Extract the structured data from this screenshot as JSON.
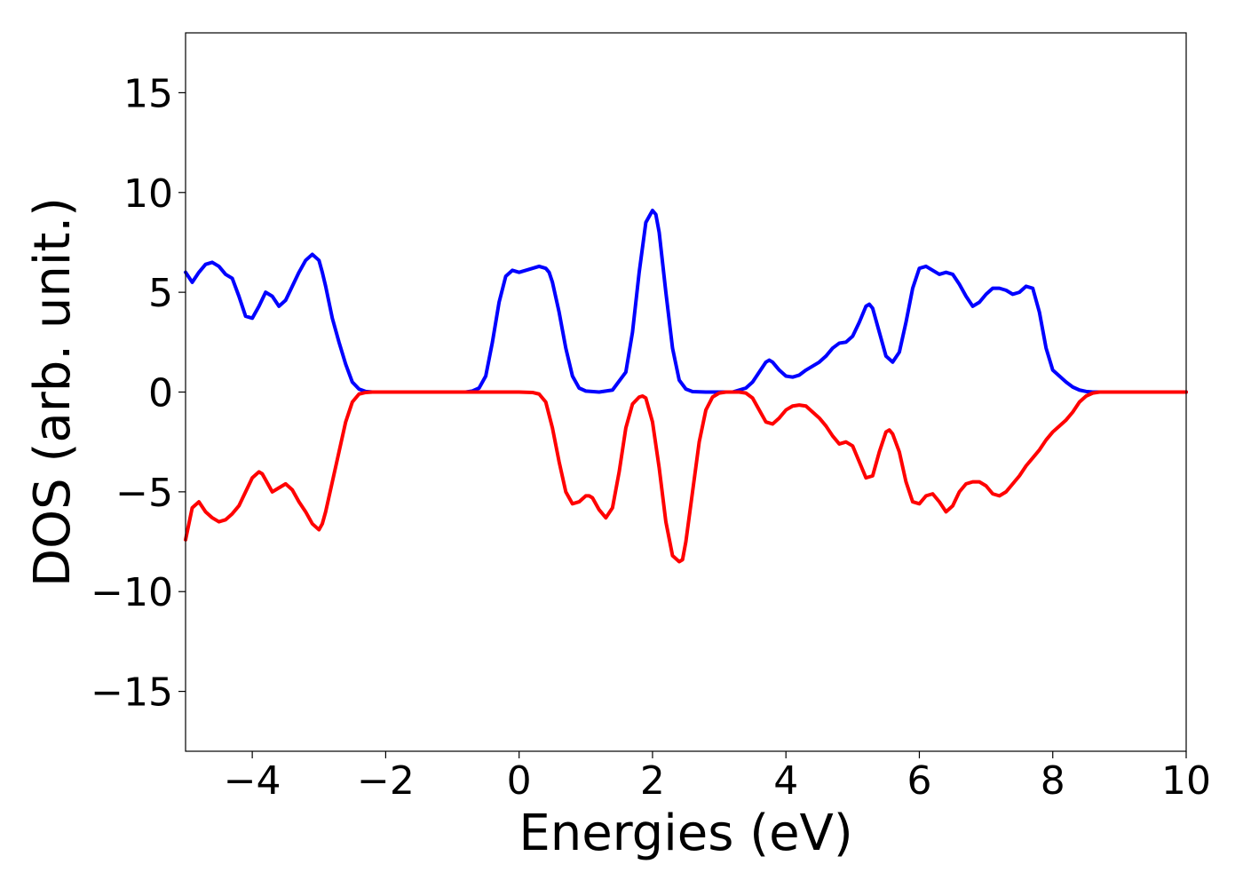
{
  "chart_data": {
    "type": "line",
    "title": "",
    "xlabel": "Energies (eV)",
    "ylabel": "DOS (arb. unit.)",
    "xlim": [
      -5,
      10
    ],
    "ylim": [
      -18,
      18
    ],
    "xticks": [
      -4,
      -2,
      0,
      2,
      4,
      6,
      8,
      10
    ],
    "xtick_labels": [
      "−4",
      "−2",
      "0",
      "2",
      "4",
      "6",
      "8",
      "10"
    ],
    "yticks": [
      15,
      10,
      5,
      0,
      -5,
      -10,
      -15
    ],
    "ytick_labels": [
      "15",
      "10",
      "5",
      "0",
      "−5",
      "−10",
      "−15"
    ],
    "grid": false,
    "legend": "none",
    "series": [
      {
        "color": "#0000ff",
        "x": [
          -5.0,
          -4.9,
          -4.8,
          -4.7,
          -4.6,
          -4.5,
          -4.4,
          -4.3,
          -4.2,
          -4.1,
          -4.0,
          -3.95,
          -3.9,
          -3.8,
          -3.7,
          -3.6,
          -3.5,
          -3.4,
          -3.3,
          -3.2,
          -3.1,
          -3.0,
          -2.95,
          -2.9,
          -2.8,
          -2.7,
          -2.6,
          -2.5,
          -2.4,
          -2.3,
          -2.2,
          -2.0,
          -1.5,
          -1.0,
          -0.8,
          -0.7,
          -0.6,
          -0.5,
          -0.4,
          -0.3,
          -0.2,
          -0.1,
          0.0,
          0.1,
          0.2,
          0.3,
          0.4,
          0.45,
          0.5,
          0.6,
          0.7,
          0.8,
          0.9,
          1.0,
          1.2,
          1.4,
          1.6,
          1.7,
          1.8,
          1.9,
          2.0,
          2.05,
          2.1,
          2.2,
          2.3,
          2.4,
          2.5,
          2.6,
          2.8,
          3.0,
          3.2,
          3.4,
          3.5,
          3.6,
          3.7,
          3.75,
          3.8,
          3.9,
          4.0,
          4.1,
          4.2,
          4.3,
          4.4,
          4.5,
          4.6,
          4.7,
          4.8,
          4.9,
          5.0,
          5.1,
          5.2,
          5.25,
          5.3,
          5.4,
          5.5,
          5.6,
          5.7,
          5.8,
          5.9,
          6.0,
          6.1,
          6.2,
          6.3,
          6.4,
          6.5,
          6.6,
          6.7,
          6.8,
          6.9,
          7.0,
          7.1,
          7.2,
          7.3,
          7.4,
          7.5,
          7.6,
          7.7,
          7.8,
          7.9,
          8.0,
          8.1,
          8.2,
          8.3,
          8.4,
          8.5,
          8.6,
          8.7,
          9.0,
          10.0
        ],
        "y": [
          6.0,
          5.5,
          6.0,
          6.4,
          6.5,
          6.3,
          5.9,
          5.7,
          4.8,
          3.8,
          3.7,
          4.0,
          4.3,
          5.0,
          4.8,
          4.3,
          4.6,
          5.3,
          6.0,
          6.6,
          6.9,
          6.6,
          6.0,
          5.3,
          3.7,
          2.5,
          1.4,
          0.5,
          0.15,
          0.03,
          0.0,
          0.0,
          0.0,
          0.0,
          0.0,
          0.05,
          0.2,
          0.8,
          2.5,
          4.5,
          5.8,
          6.1,
          6.0,
          6.1,
          6.2,
          6.3,
          6.2,
          6.0,
          5.5,
          4.0,
          2.2,
          0.8,
          0.2,
          0.05,
          0.0,
          0.1,
          1.0,
          3.0,
          6.0,
          8.5,
          9.1,
          8.9,
          8.0,
          5.0,
          2.2,
          0.6,
          0.15,
          0.02,
          0.0,
          0.0,
          0.0,
          0.2,
          0.5,
          1.0,
          1.5,
          1.6,
          1.5,
          1.1,
          0.8,
          0.75,
          0.85,
          1.1,
          1.3,
          1.5,
          1.8,
          2.2,
          2.45,
          2.5,
          2.8,
          3.5,
          4.3,
          4.4,
          4.2,
          3.0,
          1.8,
          1.5,
          2.0,
          3.5,
          5.2,
          6.2,
          6.3,
          6.1,
          5.9,
          6.0,
          5.9,
          5.4,
          4.8,
          4.3,
          4.5,
          4.9,
          5.2,
          5.2,
          5.1,
          4.9,
          5.0,
          5.3,
          5.2,
          4.0,
          2.2,
          1.1,
          0.8,
          0.5,
          0.25,
          0.1,
          0.03,
          0.0,
          0.0,
          0.0,
          0.0
        ]
      },
      {
        "color": "#ff0000",
        "x": [
          -5.0,
          -4.9,
          -4.8,
          -4.7,
          -4.6,
          -4.5,
          -4.4,
          -4.3,
          -4.2,
          -4.1,
          -4.0,
          -3.9,
          -3.85,
          -3.8,
          -3.7,
          -3.6,
          -3.5,
          -3.4,
          -3.3,
          -3.2,
          -3.1,
          -3.0,
          -2.95,
          -2.9,
          -2.8,
          -2.7,
          -2.6,
          -2.5,
          -2.4,
          -2.3,
          -2.2,
          -2.0,
          -1.0,
          0.0,
          0.2,
          0.3,
          0.4,
          0.5,
          0.6,
          0.7,
          0.8,
          0.9,
          1.0,
          1.05,
          1.1,
          1.2,
          1.3,
          1.4,
          1.5,
          1.6,
          1.7,
          1.8,
          1.85,
          1.9,
          2.0,
          2.1,
          2.2,
          2.3,
          2.4,
          2.45,
          2.5,
          2.6,
          2.7,
          2.8,
          2.9,
          3.0,
          3.1,
          3.2,
          3.3,
          3.4,
          3.5,
          3.6,
          3.7,
          3.8,
          3.9,
          4.0,
          4.1,
          4.2,
          4.3,
          4.4,
          4.5,
          4.6,
          4.7,
          4.8,
          4.9,
          5.0,
          5.1,
          5.2,
          5.3,
          5.4,
          5.5,
          5.55,
          5.6,
          5.7,
          5.8,
          5.9,
          6.0,
          6.1,
          6.2,
          6.3,
          6.4,
          6.5,
          6.6,
          6.7,
          6.8,
          6.9,
          7.0,
          7.1,
          7.2,
          7.3,
          7.4,
          7.5,
          7.6,
          7.7,
          7.8,
          7.9,
          8.0,
          8.1,
          8.2,
          8.3,
          8.4,
          8.5,
          8.6,
          8.7,
          9.0,
          10.0
        ],
        "y": [
          -7.4,
          -5.8,
          -5.5,
          -6.0,
          -6.3,
          -6.5,
          -6.4,
          -6.1,
          -5.7,
          -5.0,
          -4.3,
          -4.0,
          -4.1,
          -4.4,
          -5.0,
          -4.8,
          -4.6,
          -4.9,
          -5.5,
          -6.0,
          -6.6,
          -6.9,
          -6.6,
          -6.0,
          -4.5,
          -3.0,
          -1.5,
          -0.5,
          -0.1,
          -0.02,
          0.0,
          0.0,
          0.0,
          0.0,
          -0.02,
          -0.1,
          -0.5,
          -1.8,
          -3.5,
          -5.0,
          -5.6,
          -5.5,
          -5.2,
          -5.2,
          -5.3,
          -5.9,
          -6.3,
          -5.8,
          -4.0,
          -1.8,
          -0.6,
          -0.25,
          -0.2,
          -0.3,
          -1.5,
          -3.8,
          -6.5,
          -8.2,
          -8.5,
          -8.4,
          -7.5,
          -5.0,
          -2.5,
          -0.9,
          -0.25,
          -0.05,
          0.0,
          0.0,
          0.0,
          -0.05,
          -0.3,
          -0.9,
          -1.5,
          -1.6,
          -1.3,
          -0.9,
          -0.7,
          -0.65,
          -0.7,
          -1.0,
          -1.3,
          -1.7,
          -2.2,
          -2.6,
          -2.5,
          -2.7,
          -3.5,
          -4.3,
          -4.2,
          -3.0,
          -2.0,
          -1.9,
          -2.1,
          -3.0,
          -4.5,
          -5.5,
          -5.6,
          -5.2,
          -5.1,
          -5.5,
          -6.0,
          -5.7,
          -5.0,
          -4.6,
          -4.5,
          -4.5,
          -4.7,
          -5.1,
          -5.2,
          -5.0,
          -4.6,
          -4.2,
          -3.7,
          -3.3,
          -2.9,
          -2.4,
          -2.0,
          -1.7,
          -1.4,
          -1.0,
          -0.5,
          -0.2,
          -0.05,
          0.0,
          0.0,
          0.0
        ]
      }
    ]
  }
}
